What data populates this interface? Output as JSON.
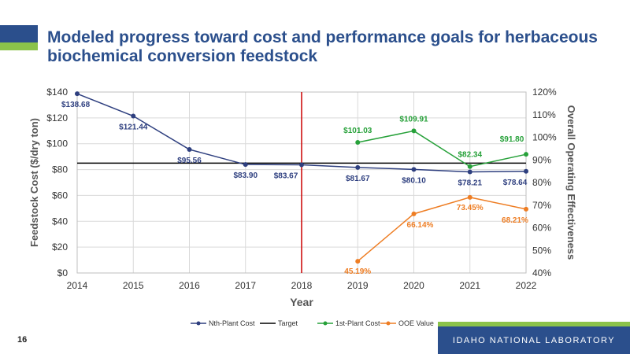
{
  "slide": {
    "title": "Modeled progress toward cost and performance goals for herbaceous biochemical conversion feedstock",
    "number": "16",
    "footer": "IDAHO NATIONAL LABORATORY"
  },
  "colors": {
    "brand_blue": "#2b4f8c",
    "brand_green": "#8bc34a",
    "nth_plant": "#2e3f7f",
    "target": "#000000",
    "first_plant": "#27a13a",
    "ooe": "#ee7d23",
    "marker_line": "#cc0000"
  },
  "chart_data": {
    "type": "line",
    "xlabel": "Year",
    "ylabel": "Feedstock Cost ($/dry ton)",
    "y2label": "Overall Operating Effectiveness",
    "x": [
      2014,
      2015,
      2016,
      2017,
      2018,
      2019,
      2020,
      2021,
      2022
    ],
    "xlim": [
      2014,
      2022
    ],
    "ylim": [
      0,
      140
    ],
    "y2lim": [
      40,
      120
    ],
    "yticks": [
      "$0",
      "$20",
      "$40",
      "$60",
      "$80",
      "$100",
      "$120",
      "$140"
    ],
    "y2ticks": [
      "40%",
      "50%",
      "60%",
      "70%",
      "80%",
      "90%",
      "100%",
      "110%",
      "120%"
    ],
    "grid": true,
    "legend_position": "bottom",
    "vertical_marker_x": 2018,
    "target_value": 85,
    "series": [
      {
        "name": "Nth-Plant Cost",
        "axis": "left",
        "x": [
          2014,
          2015,
          2016,
          2017,
          2018,
          2019,
          2020,
          2021,
          2022
        ],
        "values": [
          138.68,
          121.44,
          95.56,
          83.9,
          83.67,
          81.67,
          80.1,
          78.21,
          78.64
        ],
        "labels": [
          "$138.68",
          "$121.44",
          "$95.56",
          "$83.90",
          "$83.67",
          "$81.67",
          "$80.10",
          "$78.21",
          "$78.64"
        ]
      },
      {
        "name": "Target",
        "axis": "left",
        "x": [
          2014,
          2022
        ],
        "values": [
          85,
          85
        ]
      },
      {
        "name": "1st-Plant Cost",
        "axis": "left",
        "x": [
          2019,
          2020,
          2021,
          2022
        ],
        "values": [
          101.03,
          109.91,
          82.34,
          91.8
        ],
        "labels": [
          "$101.03",
          "$109.91",
          "$82.34",
          "$91.80"
        ]
      },
      {
        "name": "OOE Value",
        "axis": "right",
        "x": [
          2019,
          2020,
          2021,
          2022
        ],
        "values": [
          45.19,
          66.14,
          73.45,
          68.21
        ],
        "labels": [
          "45.19%",
          "66.14%",
          "73.45%",
          "68.21%"
        ]
      }
    ]
  }
}
